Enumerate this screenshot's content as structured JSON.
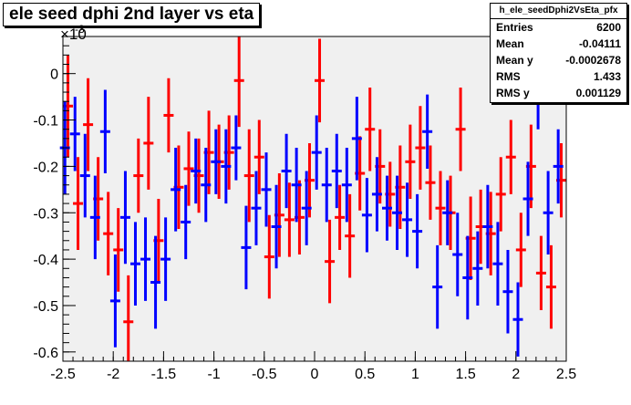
{
  "title": "ele seed dphi 2nd layer vs eta",
  "stats": {
    "name": "h_ele_seedDphi2VsEta_pfx",
    "rows": [
      {
        "label": "Entries",
        "value": "6200"
      },
      {
        "label": "Mean",
        "value": "-0.04111"
      },
      {
        "label": "Mean y",
        "value": "-0.0002678"
      },
      {
        "label": "RMS",
        "value": "1.433"
      },
      {
        "label": "RMS y",
        "value": "0.001129"
      }
    ]
  },
  "chart_data": {
    "type": "scatter",
    "y_exponent_label": "×10",
    "y_exponent": "-3",
    "xlim": [
      -2.5,
      2.5
    ],
    "ylim": [
      -0.62,
      0.08
    ],
    "x_ticks": [
      "-2.5",
      "-2",
      "-1.5",
      "-1",
      "-0.5",
      "0",
      "0.5",
      "1",
      "1.5",
      "2",
      "2.5"
    ],
    "y_ticks": [
      "-0.6",
      "-0.5",
      "-0.4",
      "-0.3",
      "-0.2",
      "-0.1",
      "0"
    ],
    "grid": false,
    "series": [
      {
        "color": "#ff0000",
        "points": [
          {
            "x": -2.45,
            "y": -0.07,
            "e": 0.11
          },
          {
            "x": -2.35,
            "y": -0.28,
            "e": 0.1
          },
          {
            "x": -2.25,
            "y": -0.11,
            "e": 0.1
          },
          {
            "x": -2.15,
            "y": -0.27,
            "e": 0.09
          },
          {
            "x": -2.05,
            "y": -0.345,
            "e": 0.09
          },
          {
            "x": -1.95,
            "y": -0.38,
            "e": 0.09
          },
          {
            "x": -1.85,
            "y": -0.535,
            "e": 0.1
          },
          {
            "x": -1.75,
            "y": -0.22,
            "e": 0.08
          },
          {
            "x": -1.65,
            "y": -0.15,
            "e": 0.1
          },
          {
            "x": -1.55,
            "y": -0.36,
            "e": 0.09
          },
          {
            "x": -1.45,
            "y": -0.09,
            "e": 0.08
          },
          {
            "x": -1.35,
            "y": -0.245,
            "e": 0.09
          },
          {
            "x": -1.25,
            "y": -0.205,
            "e": 0.08
          },
          {
            "x": -1.15,
            "y": -0.22,
            "e": 0.08
          },
          {
            "x": -1.05,
            "y": -0.17,
            "e": 0.09
          },
          {
            "x": -0.95,
            "y": -0.19,
            "e": 0.08
          },
          {
            "x": -0.85,
            "y": -0.17,
            "e": 0.08
          },
          {
            "x": -0.75,
            "y": -0.015,
            "e": 0.1
          },
          {
            "x": -0.65,
            "y": -0.22,
            "e": 0.1
          },
          {
            "x": -0.55,
            "y": -0.18,
            "e": 0.08
          },
          {
            "x": -0.45,
            "y": -0.395,
            "e": 0.09
          },
          {
            "x": -0.35,
            "y": -0.305,
            "e": 0.09
          },
          {
            "x": -0.25,
            "y": -0.315,
            "e": 0.08
          },
          {
            "x": -0.15,
            "y": -0.31,
            "e": 0.08
          },
          {
            "x": -0.05,
            "y": -0.23,
            "e": 0.08
          },
          {
            "x": 0.05,
            "y": -0.015,
            "e": 0.09
          },
          {
            "x": 0.15,
            "y": -0.405,
            "e": 0.09
          },
          {
            "x": 0.25,
            "y": -0.31,
            "e": 0.07
          },
          {
            "x": 0.35,
            "y": -0.35,
            "e": 0.09
          },
          {
            "x": 0.45,
            "y": -0.215,
            "e": 0.08
          },
          {
            "x": 0.55,
            "y": -0.12,
            "e": 0.09
          },
          {
            "x": 0.65,
            "y": -0.2,
            "e": 0.08
          },
          {
            "x": 0.75,
            "y": -0.26,
            "e": 0.07
          },
          {
            "x": 0.85,
            "y": -0.245,
            "e": 0.09
          },
          {
            "x": 0.95,
            "y": -0.19,
            "e": 0.08
          },
          {
            "x": 1.05,
            "y": -0.16,
            "e": 0.09
          },
          {
            "x": 1.15,
            "y": -0.235,
            "e": 0.08
          },
          {
            "x": 1.25,
            "y": -0.29,
            "e": 0.08
          },
          {
            "x": 1.35,
            "y": -0.3,
            "e": 0.08
          },
          {
            "x": 1.45,
            "y": -0.12,
            "e": 0.09
          },
          {
            "x": 1.55,
            "y": -0.355,
            "e": 0.09
          },
          {
            "x": 1.65,
            "y": -0.33,
            "e": 0.08
          },
          {
            "x": 1.75,
            "y": -0.345,
            "e": 0.09
          },
          {
            "x": 1.85,
            "y": -0.26,
            "e": 0.08
          },
          {
            "x": 1.95,
            "y": -0.18,
            "e": 0.08
          },
          {
            "x": 2.05,
            "y": -0.38,
            "e": 0.08
          },
          {
            "x": 2.15,
            "y": -0.2,
            "e": 0.09
          },
          {
            "x": 2.25,
            "y": -0.43,
            "e": 0.08
          },
          {
            "x": 2.35,
            "y": -0.46,
            "e": 0.09
          },
          {
            "x": 2.45,
            "y": -0.23,
            "e": 0.08
          }
        ]
      },
      {
        "color": "#0000ff",
        "points": [
          {
            "x": -2.48,
            "y": -0.16,
            "e": 0.1
          },
          {
            "x": -2.38,
            "y": -0.13,
            "e": 0.08
          },
          {
            "x": -2.28,
            "y": -0.22,
            "e": 0.09
          },
          {
            "x": -2.18,
            "y": -0.31,
            "e": 0.09
          },
          {
            "x": -2.08,
            "y": -0.125,
            "e": 0.09
          },
          {
            "x": -1.98,
            "y": -0.49,
            "e": 0.1
          },
          {
            "x": -1.88,
            "y": -0.31,
            "e": 0.1
          },
          {
            "x": -1.78,
            "y": -0.41,
            "e": 0.09
          },
          {
            "x": -1.68,
            "y": -0.4,
            "e": 0.09
          },
          {
            "x": -1.58,
            "y": -0.45,
            "e": 0.1
          },
          {
            "x": -1.48,
            "y": -0.4,
            "e": 0.09
          },
          {
            "x": -1.38,
            "y": -0.25,
            "e": 0.09
          },
          {
            "x": -1.28,
            "y": -0.32,
            "e": 0.08
          },
          {
            "x": -1.18,
            "y": -0.21,
            "e": 0.07
          },
          {
            "x": -1.08,
            "y": -0.24,
            "e": 0.08
          },
          {
            "x": -0.98,
            "y": -0.19,
            "e": 0.07
          },
          {
            "x": -0.88,
            "y": -0.2,
            "e": 0.08
          },
          {
            "x": -0.78,
            "y": -0.16,
            "e": 0.07
          },
          {
            "x": -0.68,
            "y": -0.375,
            "e": 0.09
          },
          {
            "x": -0.58,
            "y": -0.29,
            "e": 0.08
          },
          {
            "x": -0.48,
            "y": -0.25,
            "e": 0.08
          },
          {
            "x": -0.38,
            "y": -0.33,
            "e": 0.09
          },
          {
            "x": -0.28,
            "y": -0.21,
            "e": 0.08
          },
          {
            "x": -0.18,
            "y": -0.24,
            "e": 0.08
          },
          {
            "x": -0.08,
            "y": -0.29,
            "e": 0.08
          },
          {
            "x": 0.02,
            "y": -0.17,
            "e": 0.08
          },
          {
            "x": 0.12,
            "y": -0.24,
            "e": 0.08
          },
          {
            "x": 0.22,
            "y": -0.21,
            "e": 0.08
          },
          {
            "x": 0.32,
            "y": -0.24,
            "e": 0.08
          },
          {
            "x": 0.42,
            "y": -0.14,
            "e": 0.09
          },
          {
            "x": 0.52,
            "y": -0.305,
            "e": 0.08
          },
          {
            "x": 0.62,
            "y": -0.26,
            "e": 0.08
          },
          {
            "x": 0.72,
            "y": -0.29,
            "e": 0.07
          },
          {
            "x": 0.82,
            "y": -0.3,
            "e": 0.08
          },
          {
            "x": 0.92,
            "y": -0.315,
            "e": 0.08
          },
          {
            "x": 1.02,
            "y": -0.34,
            "e": 0.08
          },
          {
            "x": 1.12,
            "y": -0.125,
            "e": 0.08
          },
          {
            "x": 1.22,
            "y": -0.46,
            "e": 0.09
          },
          {
            "x": 1.32,
            "y": -0.3,
            "e": 0.07
          },
          {
            "x": 1.42,
            "y": -0.39,
            "e": 0.09
          },
          {
            "x": 1.52,
            "y": -0.44,
            "e": 0.09
          },
          {
            "x": 1.62,
            "y": -0.42,
            "e": 0.08
          },
          {
            "x": 1.72,
            "y": -0.33,
            "e": 0.09
          },
          {
            "x": 1.82,
            "y": -0.41,
            "e": 0.09
          },
          {
            "x": 1.92,
            "y": -0.47,
            "e": 0.09
          },
          {
            "x": 2.02,
            "y": -0.53,
            "e": 0.08
          },
          {
            "x": 2.12,
            "y": -0.27,
            "e": 0.08
          },
          {
            "x": 2.22,
            "y": -0.05,
            "e": 0.07
          },
          {
            "x": 2.32,
            "y": -0.3,
            "e": 0.09
          },
          {
            "x": 2.42,
            "y": -0.2,
            "e": 0.08
          }
        ]
      }
    ]
  }
}
